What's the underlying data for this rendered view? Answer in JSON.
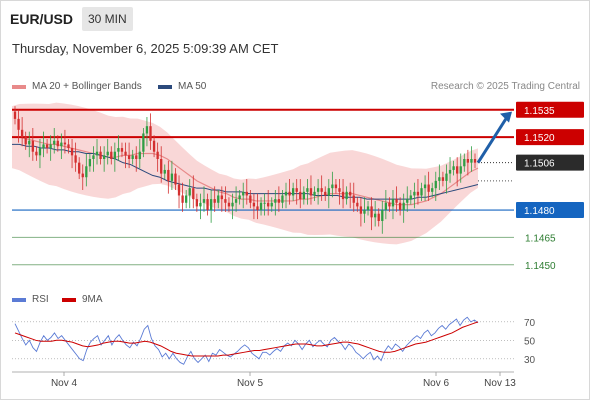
{
  "header": {
    "pair": "EUR/USD",
    "timeframe": "30 MIN",
    "timestamp": "Thursday, November 6, 2025 5:09:39 AM CET"
  },
  "legend": {
    "ma20": "MA 20 + Bollinger Bands",
    "ma50": "MA 50",
    "rsi": "RSI",
    "rsi_ma": "9MA",
    "credit": "Research © 2025 Trading Central"
  },
  "colors": {
    "ma20": "#e88a8a",
    "ma50": "#2c4a7c",
    "band": "#f7c6c6",
    "up": "#2f9e44",
    "down": "#d32f2f",
    "resistance": "#cc0000",
    "support": "#1565c0",
    "support2": "#2e7d32",
    "rsi": "#5b7bd5",
    "rsi_ma": "#cc0000",
    "arrow": "#1f5fa8"
  },
  "chart_data": {
    "type": "candlestick",
    "ylim": [
      1.144,
      1.1542
    ],
    "x_ticks": [
      "Nov 4",
      "Nov 5",
      "Nov 6",
      "Nov 13"
    ],
    "levels": [
      {
        "value": 1.1535,
        "label": "1.1535",
        "kind": "resistance"
      },
      {
        "value": 1.152,
        "label": "1.1520",
        "kind": "resistance"
      },
      {
        "value": 1.1506,
        "label": "1.1506",
        "kind": "current"
      },
      {
        "value": 1.148,
        "label": "1.1480",
        "kind": "support"
      },
      {
        "value": 1.1465,
        "label": "1.1465",
        "kind": "support2"
      },
      {
        "value": 1.145,
        "label": "1.1450",
        "kind": "support2"
      }
    ],
    "closes": [
      1.153,
      1.1524,
      1.152,
      1.1516,
      1.1518,
      1.1512,
      1.151,
      1.1514,
      1.1516,
      1.1514,
      1.1516,
      1.1518,
      1.1515,
      1.1517,
      1.1516,
      1.1514,
      1.151,
      1.1506,
      1.15,
      1.1498,
      1.1504,
      1.1508,
      1.151,
      1.1512,
      1.1508,
      1.151,
      1.1512,
      1.1508,
      1.1512,
      1.1514,
      1.1512,
      1.151,
      1.1508,
      1.151,
      1.1508,
      1.1512,
      1.1522,
      1.1526,
      1.1518,
      1.1512,
      1.1508,
      1.15,
      1.1502,
      1.1496,
      1.15,
      1.1494,
      1.1488,
      1.1484,
      1.1488,
      1.1492,
      1.1486,
      1.1482,
      1.1484,
      1.1486,
      1.148,
      1.1486,
      1.1484,
      1.1488,
      1.1486,
      1.1484,
      1.1482,
      1.1484,
      1.1486,
      1.1488,
      1.149,
      1.1488,
      1.1484,
      1.1482,
      1.148,
      1.1484,
      1.1484,
      1.1482,
      1.1484,
      1.1486,
      1.1484,
      1.1488,
      1.149,
      1.1488,
      1.1492,
      1.149,
      1.1486,
      1.149,
      1.1492,
      1.1488,
      1.149,
      1.1492,
      1.149,
      1.1488,
      1.1492,
      1.1494,
      1.1492,
      1.149,
      1.1486,
      1.149,
      1.1488,
      1.1484,
      1.1482,
      1.1478,
      1.148,
      1.1482,
      1.1476,
      1.1478,
      1.1474,
      1.148,
      1.1484,
      1.1482,
      1.1486,
      1.1484,
      1.148,
      1.1484,
      1.1486,
      1.1488,
      1.149,
      1.1488,
      1.1492,
      1.1494,
      1.149,
      1.1492,
      1.1496,
      1.1498,
      1.1496,
      1.15,
      1.1502,
      1.1504,
      1.15,
      1.1504,
      1.1508,
      1.1506,
      1.1508,
      1.1506
    ],
    "ma20": [
      1.152,
      1.152,
      1.1519,
      1.1518,
      1.1517,
      1.1516,
      1.1516,
      1.1515,
      1.1514,
      1.1513,
      1.1512,
      1.1511,
      1.151,
      1.1509,
      1.1509,
      1.151,
      1.151,
      1.1511,
      1.1511,
      1.1511,
      1.151,
      1.1508,
      1.1505,
      1.1502,
      1.1499,
      1.1496,
      1.1494,
      1.1492,
      1.149,
      1.1489,
      1.1487,
      1.1486,
      1.1486,
      1.1485,
      1.1485,
      1.1485,
      1.1485,
      1.1485,
      1.1485,
      1.1486,
      1.1486,
      1.1487,
      1.1488,
      1.1489,
      1.1489,
      1.1489,
      1.1489,
      1.1488,
      1.1487,
      1.1486,
      1.1485,
      1.1484,
      1.1483,
      1.1483,
      1.1483,
      1.1484,
      1.1485,
      1.1487,
      1.1489,
      1.1492,
      1.1495,
      1.1498,
      1.1501,
      1.1503
    ],
    "ma50": [
      1.1516,
      1.1516,
      1.1515,
      1.1515,
      1.1514,
      1.1514,
      1.1513,
      1.1513,
      1.1512,
      1.1512,
      1.1511,
      1.1511,
      1.151,
      1.1509,
      1.1508,
      1.1506,
      1.1505,
      1.1503,
      1.1501,
      1.1499,
      1.1498,
      1.1496,
      1.1495,
      1.1494,
      1.1493,
      1.1492,
      1.1492,
      1.1491,
      1.1491,
      1.149,
      1.149,
      1.149,
      1.1489,
      1.1489,
      1.1489,
      1.1489,
      1.1489,
      1.1489,
      1.1489,
      1.1489,
      1.1489,
      1.1488,
      1.1488,
      1.1488,
      1.1488,
      1.1487,
      1.1487,
      1.1487,
      1.1486,
      1.1486,
      1.1486,
      1.1486,
      1.1486,
      1.1486,
      1.1486,
      1.1487,
      1.1487,
      1.1488,
      1.1489,
      1.149,
      1.1491,
      1.1492,
      1.1493,
      1.1494
    ],
    "rsi": {
      "ticks": [
        70,
        50,
        30
      ],
      "ylim": [
        20,
        85
      ],
      "rsi": [
        68,
        60,
        52,
        45,
        50,
        42,
        38,
        48,
        55,
        50,
        53,
        58,
        52,
        55,
        50,
        45,
        40,
        35,
        30,
        28,
        40,
        48,
        52,
        55,
        45,
        50,
        55,
        45,
        52,
        56,
        50,
        45,
        42,
        48,
        44,
        52,
        62,
        66,
        52,
        44,
        40,
        32,
        36,
        30,
        36,
        30,
        26,
        24,
        32,
        38,
        30,
        26,
        30,
        34,
        27,
        36,
        34,
        40,
        37,
        34,
        32,
        35,
        38,
        42,
        45,
        42,
        36,
        33,
        30,
        37,
        37,
        34,
        38,
        41,
        38,
        44,
        47,
        44,
        50,
        46,
        40,
        46,
        50,
        43,
        47,
        50,
        46,
        43,
        50,
        53,
        49,
        46,
        40,
        46,
        43,
        37,
        34,
        30,
        34,
        37,
        29,
        33,
        28,
        38,
        44,
        40,
        46,
        43,
        38,
        44,
        48,
        52,
        55,
        52,
        58,
        61,
        55,
        58,
        63,
        66,
        62,
        67,
        70,
        73,
        66,
        72,
        75,
        70,
        72,
        69
      ],
      "ma9": [
        58,
        56,
        54,
        52,
        50,
        49,
        49,
        49,
        50,
        50,
        49,
        48,
        46,
        44,
        43,
        44,
        45,
        47,
        48,
        49,
        49,
        48,
        47,
        47,
        48,
        49,
        48,
        46,
        44,
        41,
        38,
        36,
        35,
        34,
        33,
        33,
        33,
        33,
        33,
        33,
        34,
        34,
        35,
        36,
        37,
        38,
        39,
        39,
        40,
        41,
        42,
        43,
        44,
        45,
        46,
        46,
        46,
        45,
        44,
        44,
        45,
        46,
        47,
        48,
        48,
        47,
        46,
        44,
        42,
        40,
        38,
        37,
        37,
        38,
        40,
        42,
        44,
        46,
        47,
        48,
        50,
        52,
        54,
        56,
        58,
        61,
        64,
        66,
        68,
        70
      ]
    }
  }
}
